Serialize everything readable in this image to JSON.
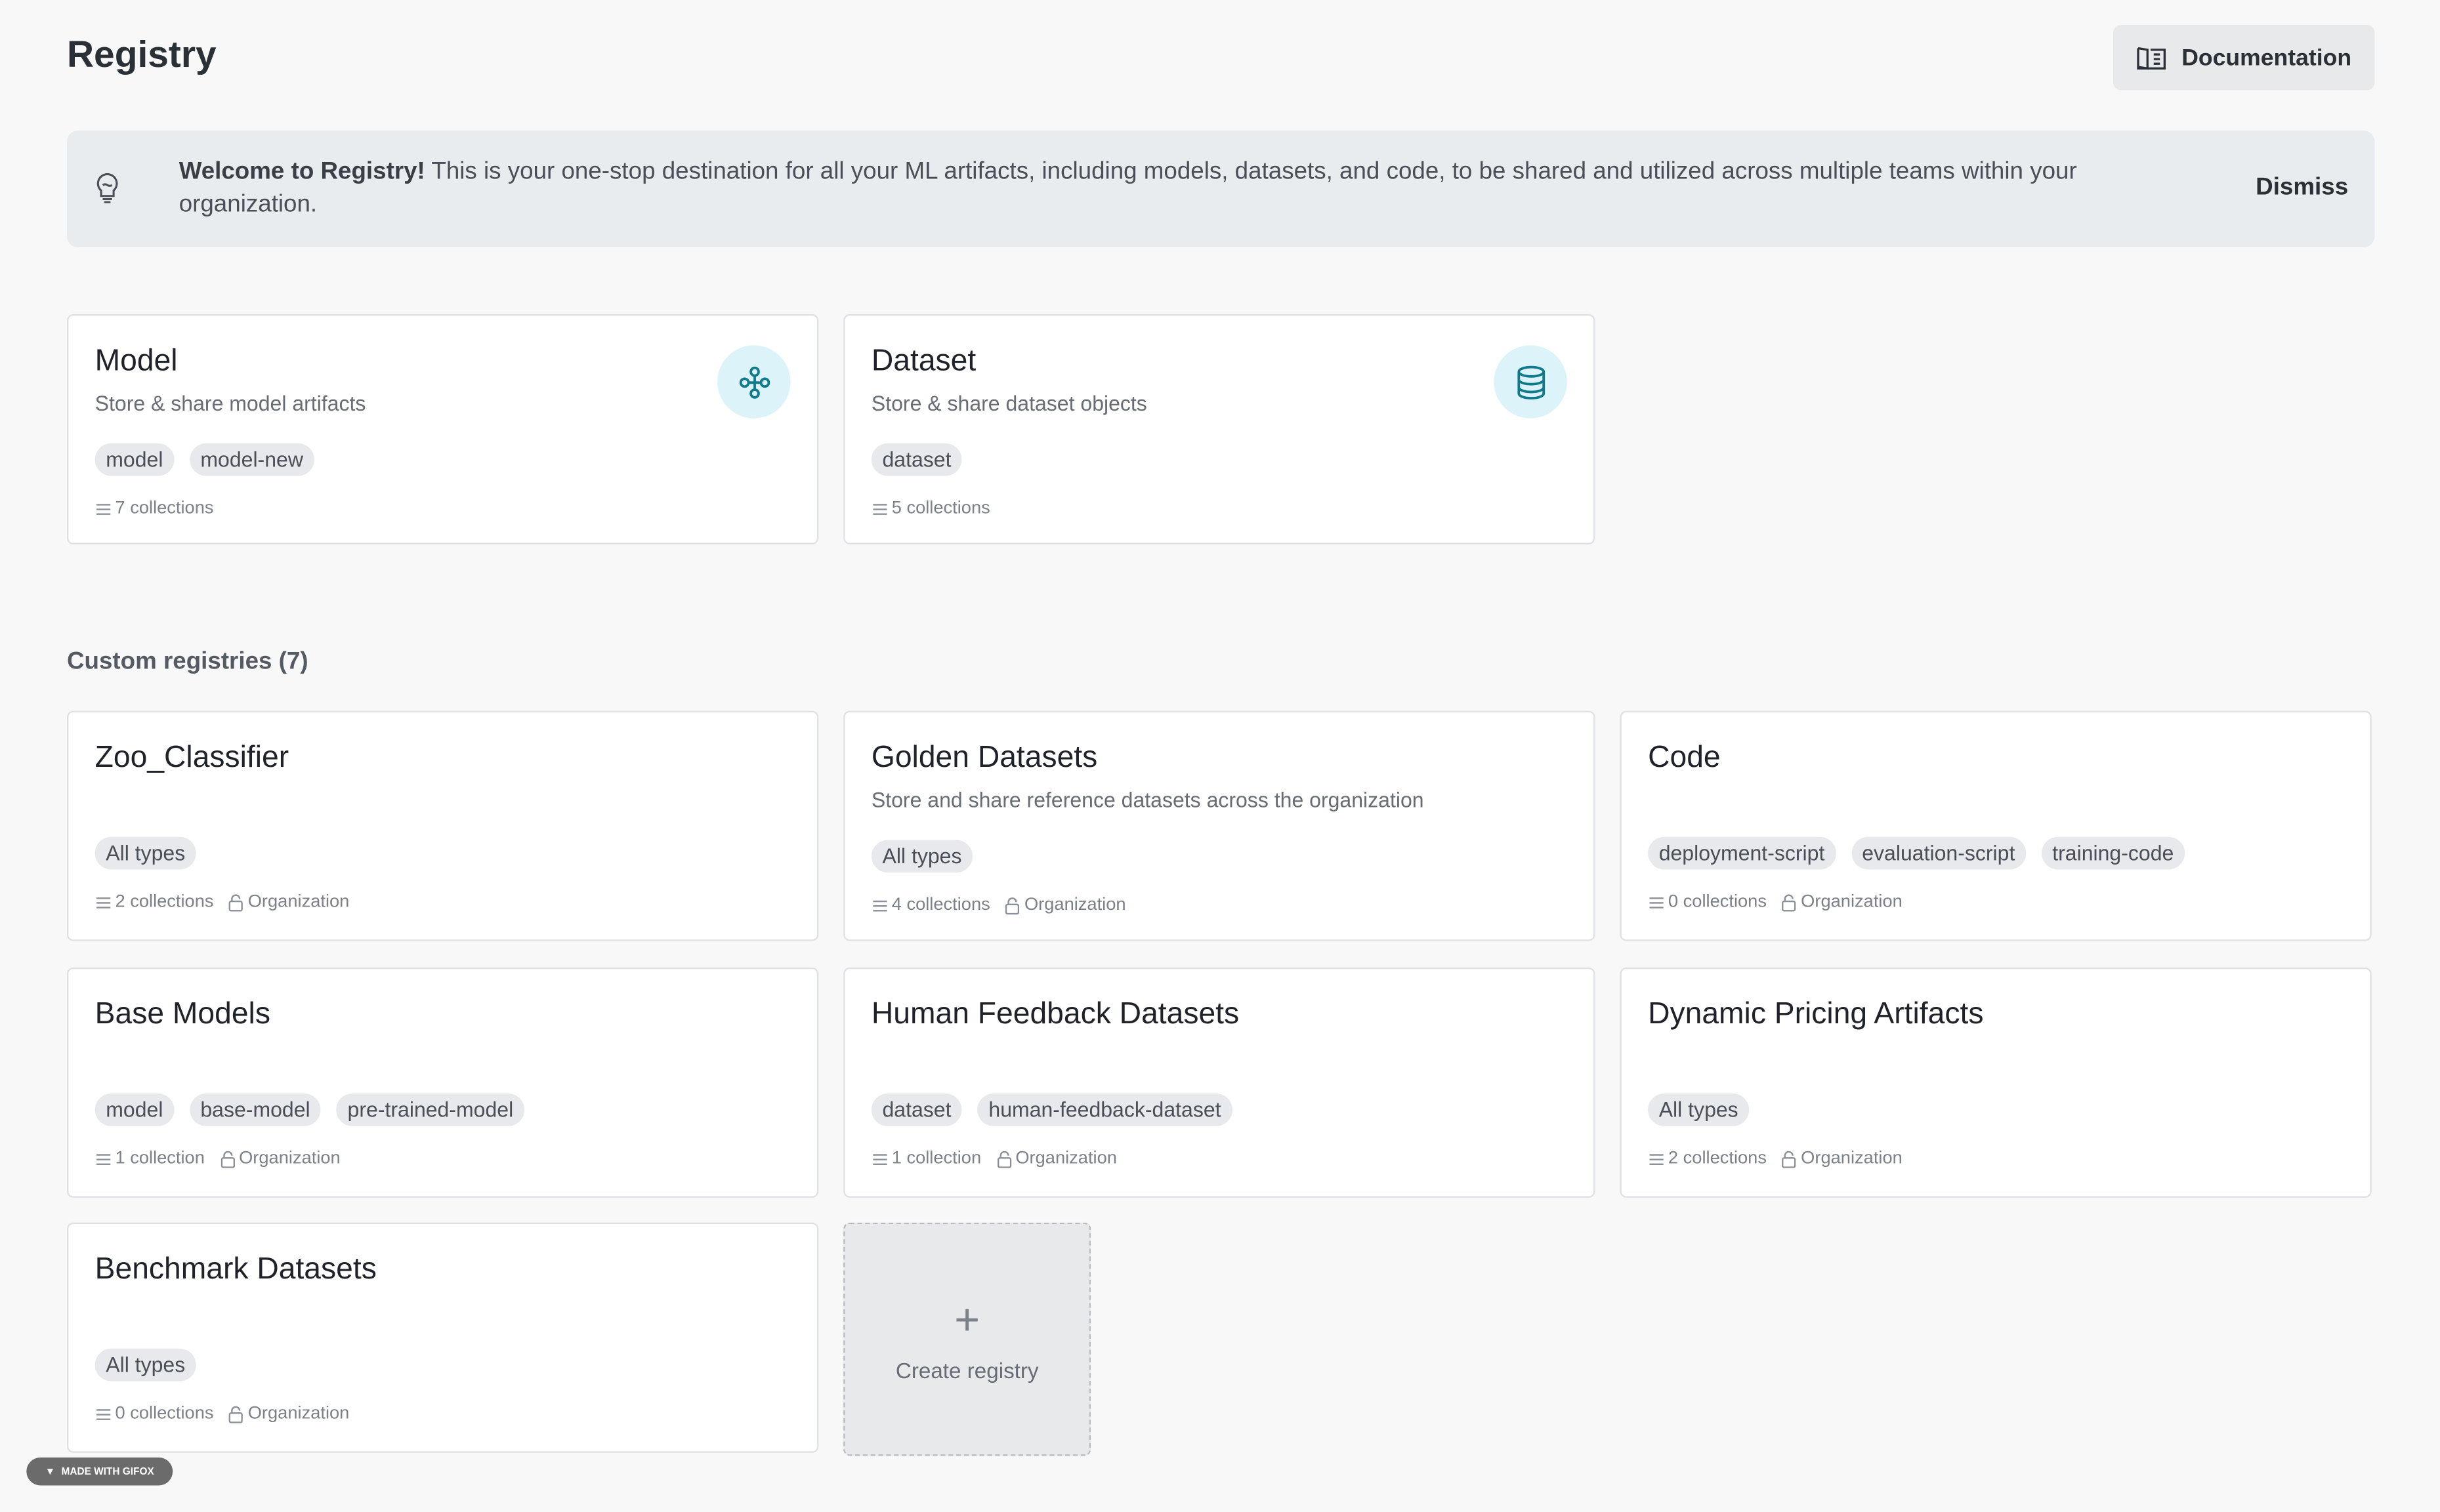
{
  "header": {
    "title": "Registry",
    "documentation_label": "Documentation"
  },
  "banner": {
    "bold": "Welcome to Registry!",
    "text": " This is your one-stop destination for all your ML artifacts, including models, datasets, and code, to be shared and utilized across multiple teams within your organization.",
    "dismiss_label": "Dismiss"
  },
  "core_registries": [
    {
      "name": "Model",
      "description": "Store & share model artifacts",
      "tags": [
        "model",
        "model-new"
      ],
      "collections": "7 collections",
      "icon": "model-network-icon"
    },
    {
      "name": "Dataset",
      "description": "Store & share dataset objects",
      "tags": [
        "dataset"
      ],
      "collections": "5 collections",
      "icon": "database-icon"
    }
  ],
  "custom_section_label": "Custom registries (7)",
  "custom_registries": [
    {
      "name": "Zoo_Classifier",
      "description": "",
      "tags": [
        "All types"
      ],
      "collections": "2 collections",
      "visibility": "Organization"
    },
    {
      "name": "Golden Datasets",
      "description": "Store and share reference datasets across the organization",
      "tags": [
        "All types"
      ],
      "collections": "4 collections",
      "visibility": "Organization"
    },
    {
      "name": "Code",
      "description": "",
      "tags": [
        "deployment-script",
        "evaluation-script",
        "training-code"
      ],
      "collections": "0 collections",
      "visibility": "Organization"
    },
    {
      "name": "Base Models",
      "description": "",
      "tags": [
        "model",
        "base-model",
        "pre-trained-model"
      ],
      "collections": "1 collection",
      "visibility": "Organization"
    },
    {
      "name": "Human Feedback Datasets",
      "description": "",
      "tags": [
        "dataset",
        "human-feedback-dataset"
      ],
      "collections": "1 collection",
      "visibility": "Organization"
    },
    {
      "name": "Dynamic Pricing Artifacts",
      "description": "",
      "tags": [
        "All types"
      ],
      "collections": "2 collections",
      "visibility": "Organization"
    },
    {
      "name": "Benchmark Datasets",
      "description": "",
      "tags": [
        "All types"
      ],
      "collections": "0 collections",
      "visibility": "Organization"
    }
  ],
  "create_registry_label": "Create registry",
  "watermark": "MADE WITH GIFOX",
  "colors": {
    "accent": "#0e7a8c",
    "icon_bg": "#dcf3f9",
    "banner_bg": "#e9ecef"
  }
}
